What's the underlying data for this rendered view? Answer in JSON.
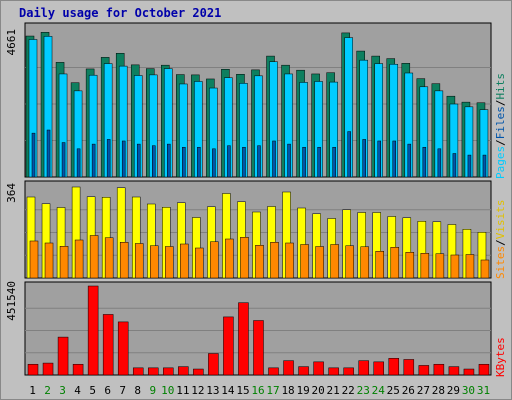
{
  "title": "Daily usage for October 2021",
  "chart_data": [
    {
      "type": "bar",
      "panel": "pages-files-hits",
      "ymax_label": "4661",
      "ylim": [
        0,
        4661
      ],
      "categories": [
        "1",
        "2",
        "3",
        "4",
        "5",
        "6",
        "7",
        "8",
        "9",
        "10",
        "11",
        "12",
        "13",
        "14",
        "15",
        "16",
        "17",
        "18",
        "19",
        "20",
        "21",
        "22",
        "23",
        "24",
        "25",
        "26",
        "27",
        "28",
        "29",
        "30",
        "31"
      ],
      "legend": [
        "Pages",
        "Files",
        "Hits"
      ],
      "series": [
        {
          "name": "Hits",
          "color": "#0e7f5f",
          "values": [
            4500,
            4620,
            3660,
            3010,
            3450,
            3820,
            3950,
            3580,
            3460,
            3570,
            3270,
            3260,
            3130,
            3440,
            3280,
            3420,
            3860,
            3570,
            3410,
            3290,
            3330,
            4600,
            4020,
            3860,
            3780,
            3630,
            3140,
            2980,
            2580,
            2390,
            2370
          ]
        },
        {
          "name": "Files",
          "color": "#00ccff",
          "values": [
            4390,
            4490,
            3290,
            2750,
            3250,
            3620,
            3540,
            3240,
            3260,
            3460,
            2970,
            3050,
            2840,
            3170,
            2990,
            3230,
            3680,
            3290,
            3020,
            3050,
            3030,
            4450,
            3730,
            3620,
            3600,
            3320,
            2880,
            2750,
            2330,
            2240,
            2150
          ]
        },
        {
          "name": "Pages",
          "color": "#0055aa",
          "values": [
            1400,
            1500,
            1100,
            900,
            1050,
            1200,
            1150,
            1050,
            1000,
            1050,
            950,
            950,
            900,
            1000,
            950,
            1000,
            1150,
            1050,
            950,
            950,
            950,
            1450,
            1200,
            1150,
            1150,
            1050,
            950,
            900,
            750,
            700,
            700
          ]
        }
      ]
    },
    {
      "type": "bar",
      "panel": "sites-visits",
      "ymax_label": "364",
      "ylim": [
        0,
        364
      ],
      "categories": [
        "1",
        "2",
        "3",
        "4",
        "5",
        "6",
        "7",
        "8",
        "9",
        "10",
        "11",
        "12",
        "13",
        "14",
        "15",
        "16",
        "17",
        "18",
        "19",
        "20",
        "21",
        "22",
        "23",
        "24",
        "25",
        "26",
        "27",
        "28",
        "29",
        "30",
        "31"
      ],
      "legend": [
        "Sites",
        "Visits"
      ],
      "series": [
        {
          "name": "Visits",
          "color": "#ffff00",
          "values": [
            324,
            297,
            282,
            364,
            325,
            323,
            361,
            324,
            296,
            283,
            301,
            242,
            285,
            338,
            305,
            264,
            286,
            344,
            280,
            257,
            238,
            273,
            262,
            262,
            246,
            241,
            227,
            225,
            214,
            195,
            183
          ]
        },
        {
          "name": "Sites",
          "color": "#ff8800",
          "values": [
            148,
            140,
            127,
            152,
            170,
            161,
            143,
            138,
            129,
            126,
            136,
            120,
            145,
            156,
            163,
            131,
            143,
            140,
            134,
            126,
            134,
            129,
            125,
            107,
            123,
            103,
            99,
            97,
            92,
            94,
            72
          ]
        }
      ]
    },
    {
      "type": "bar",
      "panel": "kbytes",
      "ymax_label": "451540",
      "ylim": [
        0,
        451540
      ],
      "categories": [
        "1",
        "2",
        "3",
        "4",
        "5",
        "6",
        "7",
        "8",
        "9",
        "10",
        "11",
        "12",
        "13",
        "14",
        "15",
        "16",
        "17",
        "18",
        "19",
        "20",
        "21",
        "22",
        "23",
        "24",
        "25",
        "26",
        "27",
        "28",
        "29",
        "30",
        "31"
      ],
      "legend": [
        "KBytes"
      ],
      "series": [
        {
          "name": "KBytes",
          "color": "#ff0000",
          "values": [
            54600,
            60500,
            192300,
            54600,
            451540,
            307200,
            269400,
            36300,
            36300,
            36300,
            42400,
            30300,
            109000,
            294700,
            366800,
            276400,
            36300,
            72700,
            42400,
            66700,
            36300,
            36300,
            72700,
            66700,
            84800,
            78800,
            48500,
            54600,
            42400,
            30300,
            54600
          ]
        }
      ]
    }
  ],
  "colors": {
    "background": "#c0c0c0",
    "plot_background": "#a0a0a0",
    "title": "#0000aa",
    "weekday_label": "#000000",
    "weekend_label": "#008000"
  },
  "weekend_days": [
    "2",
    "3",
    "9",
    "10",
    "16",
    "17",
    "23",
    "24",
    "30",
    "31"
  ]
}
